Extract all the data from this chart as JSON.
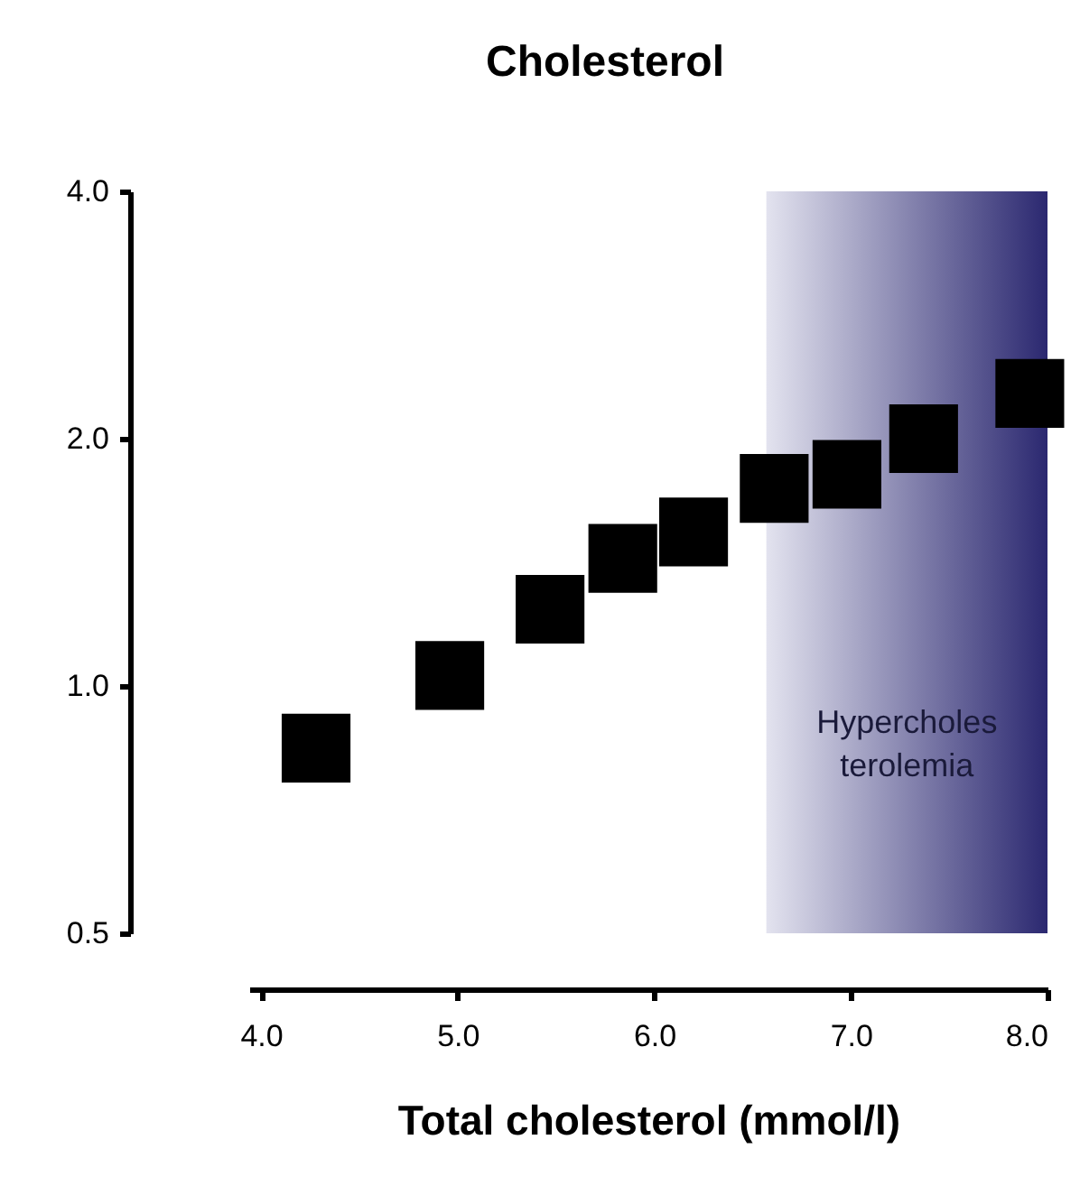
{
  "chart_data": {
    "type": "scatter",
    "title": "Cholesterol",
    "xlabel": "Total cholesterol (mmol/l)",
    "log": "y",
    "marker": "square",
    "grid": false,
    "x": [
      4.28,
      4.96,
      5.47,
      5.84,
      6.2,
      6.61,
      6.98,
      7.37,
      7.91
    ],
    "series": [
      {
        "color": "#000000",
        "values": [
          0.84,
          1.03,
          1.24,
          1.43,
          1.54,
          1.74,
          1.81,
          2.0,
          2.27
        ]
      }
    ],
    "xlim": [
      3.94,
      8.0
    ],
    "xticks": [
      {
        "value": 4,
        "label": "4.0"
      },
      {
        "value": 5,
        "label": "5.0"
      },
      {
        "value": 6,
        "label": "6.0"
      },
      {
        "value": 7,
        "label": "7.0"
      },
      {
        "value": 8,
        "label": "8.0"
      }
    ],
    "ylim": [
      0.5,
      4.0
    ],
    "yticks": [
      {
        "value": 0.5,
        "label": "0.5"
      },
      {
        "value": 1,
        "label": "1.0"
      },
      {
        "value": 2,
        "label": "2.0"
      },
      {
        "value": 4,
        "label": "4.0"
      }
    ],
    "bands": [
      {
        "axis": "x",
        "from": 6.57,
        "to": 8.0,
        "label": "Hypercholes\nterolemia",
        "color": "#2b2870"
      }
    ]
  }
}
